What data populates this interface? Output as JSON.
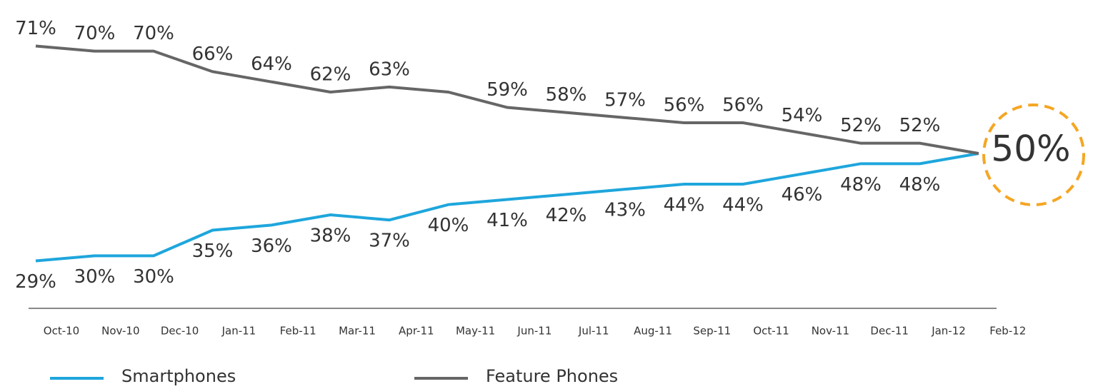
{
  "chart_data": {
    "type": "line",
    "categories": [
      "Oct-10",
      "Nov-10",
      "Dec-10",
      "Jan-11",
      "Feb-11",
      "Mar-11",
      "Apr-11",
      "May-11",
      "Jun-11",
      "Jul-11",
      "Aug-11",
      "Sep-11",
      "Oct-11",
      "Nov-11",
      "Dec-11",
      "Jan-12",
      "Feb-12"
    ],
    "ylim": [
      20,
      80
    ],
    "series": [
      {
        "name": "Smartphones",
        "color": "#1ea6dc",
        "values": [
          29,
          30,
          30,
          35,
          36,
          38,
          37,
          40,
          41,
          42,
          43,
          44,
          44,
          46,
          48,
          48,
          50
        ],
        "value_labels": [
          "29%",
          "30%",
          "30%",
          "35%",
          "36%",
          "38%",
          "37%",
          "40%",
          "41%",
          "42%",
          "43%",
          "44%",
          "44%",
          "46%",
          "48%",
          "48%",
          null
        ]
      },
      {
        "name": "Feature Phones",
        "color": "#666666",
        "values": [
          71,
          70,
          70,
          66,
          64,
          62,
          63,
          62,
          59,
          58,
          57,
          56,
          56,
          54,
          52,
          52,
          50
        ],
        "value_labels": [
          "71%",
          "70%",
          "70%",
          "66%",
          "64%",
          "62%",
          "63%",
          null,
          "59%",
          "58%",
          "57%",
          "56%",
          "56%",
          "54%",
          "52%",
          "52%",
          null
        ]
      }
    ],
    "annotation": {
      "text": "50%",
      "color": "#f5a623"
    }
  }
}
